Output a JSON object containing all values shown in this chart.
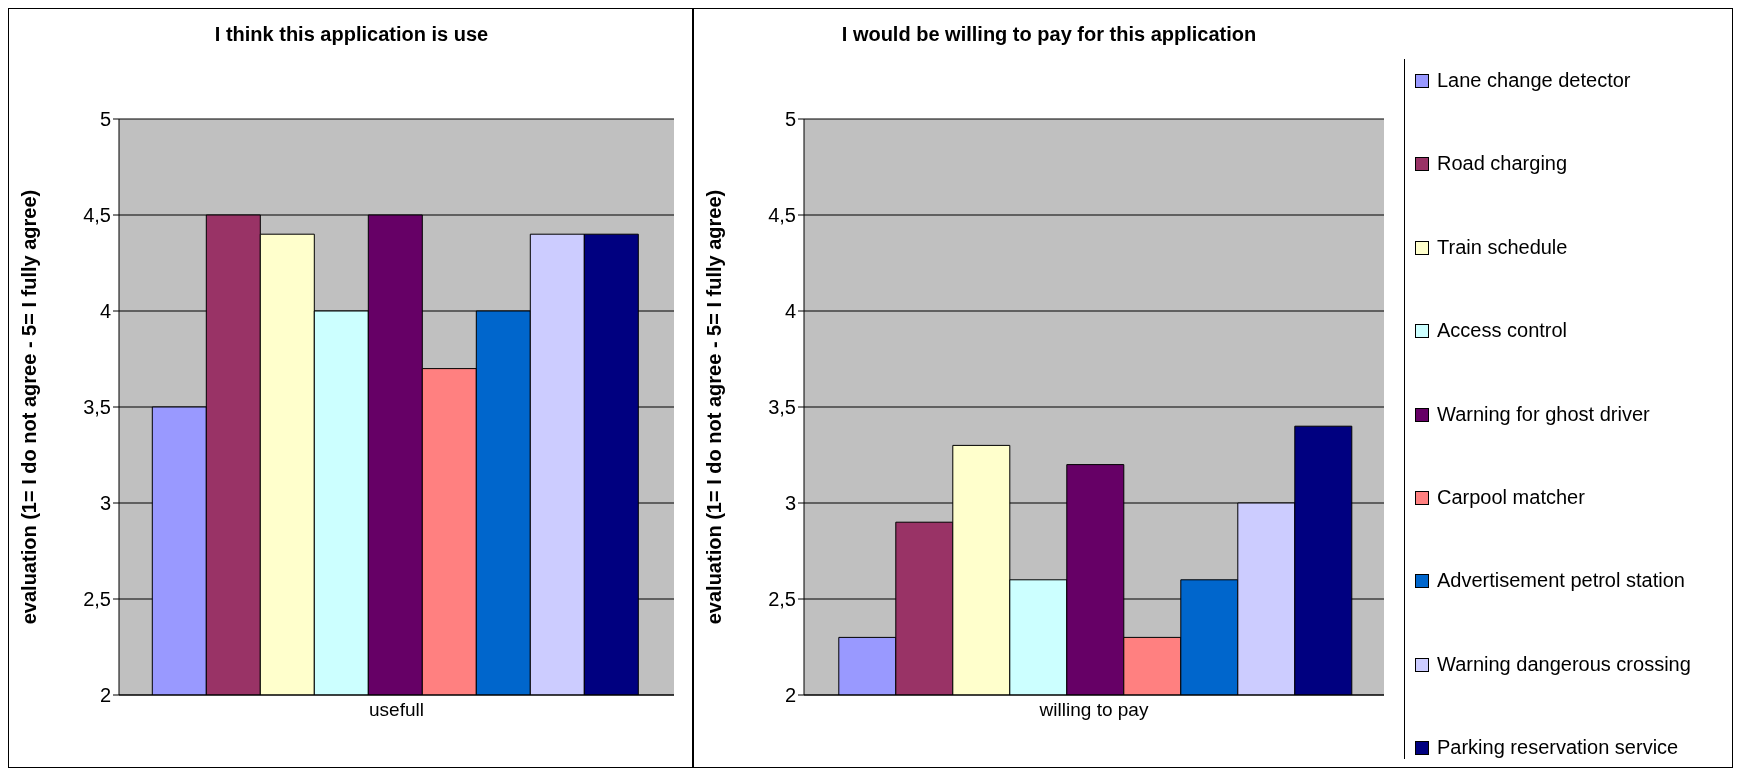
{
  "chart_data": [
    {
      "type": "bar",
      "title": "I think this application is use",
      "categories": [
        "usefull"
      ],
      "ylabel": "evaluation (1= I do not agree - 5= I fully agree)",
      "ylim": [
        2,
        5
      ],
      "yticks": [
        2,
        {
          "value": 2.5,
          "label": "2,5"
        },
        3,
        {
          "value": 3.5,
          "label": "3,5"
        },
        4,
        {
          "value": 4.5,
          "label": "4,5"
        },
        5
      ],
      "grid": "y",
      "legend": false,
      "series": [
        {
          "color": "#9999ff",
          "values": [
            3.5
          ]
        },
        {
          "color": "#993366",
          "values": [
            4.5
          ]
        },
        {
          "color": "#ffffcc",
          "values": [
            4.4
          ]
        },
        {
          "color": "#ccffff",
          "values": [
            4.0
          ]
        },
        {
          "color": "#660066",
          "values": [
            4.5
          ]
        },
        {
          "color": "#ff8080",
          "values": [
            3.7
          ]
        },
        {
          "color": "#0066cc",
          "values": [
            4.0
          ]
        },
        {
          "color": "#ccccff",
          "values": [
            4.4
          ]
        },
        {
          "color": "#000080",
          "values": [
            4.4
          ]
        }
      ]
    },
    {
      "type": "bar",
      "title": "I would be willing to pay for this application",
      "categories": [
        "willing to pay"
      ],
      "ylabel": "evaluation (1= I do not agree - 5= I fully agree)",
      "ylim": [
        2,
        5
      ],
      "yticks": [
        2,
        {
          "value": 2.5,
          "label": "2,5"
        },
        3,
        {
          "value": 3.5,
          "label": "3,5"
        },
        4,
        {
          "value": 4.5,
          "label": "4,5"
        },
        5
      ],
      "grid": "y",
      "legend": "right",
      "series": [
        {
          "name": "Lane change detector",
          "color": "#9999ff",
          "values": [
            2.3
          ]
        },
        {
          "name": "Road charging",
          "color": "#993366",
          "values": [
            2.9
          ]
        },
        {
          "name": "Train schedule",
          "color": "#ffffcc",
          "values": [
            3.3
          ]
        },
        {
          "name": "Access control",
          "color": "#ccffff",
          "values": [
            2.6
          ]
        },
        {
          "name": "Warning for ghost driver",
          "color": "#660066",
          "values": [
            3.2
          ]
        },
        {
          "name": "Carpool matcher",
          "color": "#ff8080",
          "values": [
            2.3
          ]
        },
        {
          "name": "Advertisement petrol station",
          "color": "#0066cc",
          "values": [
            2.6
          ]
        },
        {
          "name": "Warning dangerous crossing",
          "color": "#ccccff",
          "values": [
            3.0
          ]
        },
        {
          "name": "Parking reservation service",
          "color": "#000080",
          "values": [
            3.4
          ]
        }
      ]
    }
  ]
}
